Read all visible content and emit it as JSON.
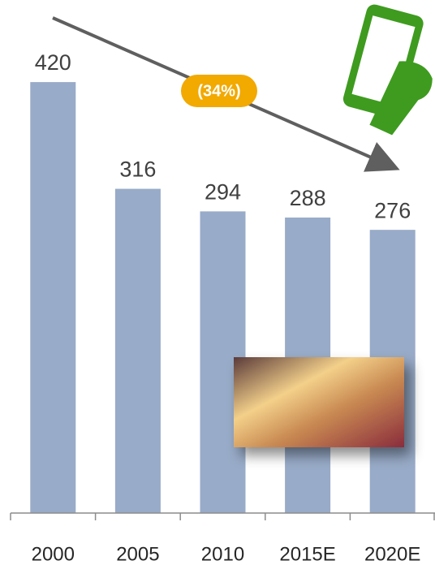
{
  "chart_data": {
    "type": "bar",
    "categories": [
      "2000",
      "2005",
      "2010",
      "2015E",
      "2020E"
    ],
    "values": [
      420,
      316,
      294,
      288,
      276
    ],
    "color": "#98abc8",
    "ylim": [
      0,
      500
    ],
    "annotation": "(34%)"
  }
}
